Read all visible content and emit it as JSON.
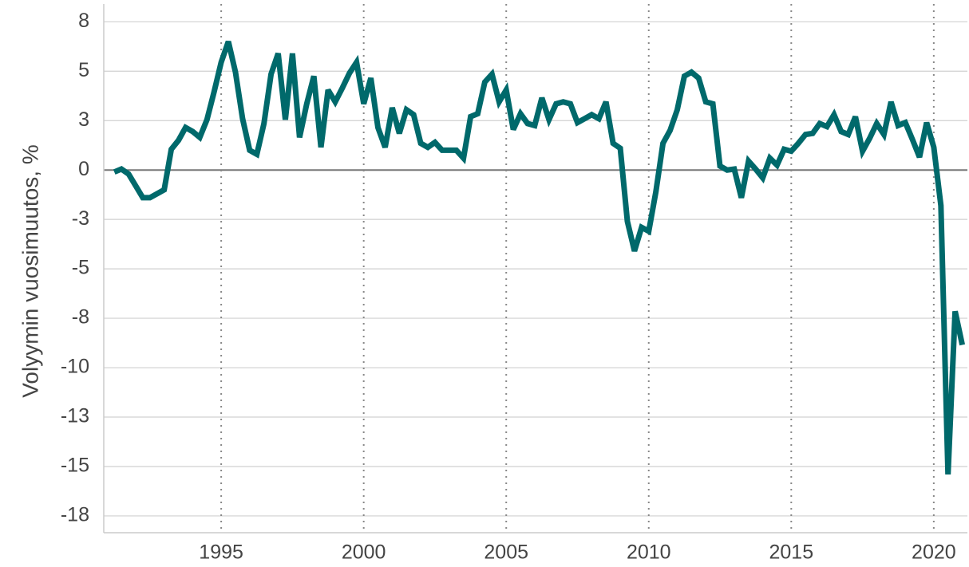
{
  "chart_data": {
    "type": "line",
    "y_label": "Volyymin vuosimuutos, %",
    "color": "#00696b",
    "grid": true,
    "x_grid": "dotted",
    "zero_line": true,
    "xlim": [
      1990.88,
      2021.18
    ],
    "xticks": [
      1995,
      2000,
      2005,
      2010,
      2015,
      2020
    ],
    "ylim": [
      -18.35,
      8.4
    ],
    "yticks": [
      {
        "value": 7.5,
        "label": "8"
      },
      5,
      {
        "value": 2.5,
        "label": "3"
      },
      0,
      {
        "value": -2.5,
        "label": "-3"
      },
      -5,
      {
        "value": -7.5,
        "label": "-8"
      },
      -10,
      {
        "value": -12.5,
        "label": "-13"
      },
      -15,
      {
        "value": -17.5,
        "label": "-18"
      }
    ],
    "x": [
      1991.25,
      1991.5,
      1991.75,
      1992.0,
      1992.25,
      1992.5,
      1992.75,
      1993.0,
      1993.25,
      1993.5,
      1993.75,
      1994.0,
      1994.25,
      1994.5,
      1994.75,
      1995.0,
      1995.25,
      1995.5,
      1995.75,
      1996.0,
      1996.25,
      1996.5,
      1996.75,
      1997.0,
      1997.25,
      1997.5,
      1997.75,
      1998.0,
      1998.25,
      1998.5,
      1998.75,
      1999.0,
      1999.25,
      1999.5,
      1999.75,
      2000.0,
      2000.25,
      2000.5,
      2000.75,
      2001.0,
      2001.25,
      2001.5,
      2001.75,
      2002.0,
      2002.25,
      2002.5,
      2002.75,
      2003.0,
      2003.25,
      2003.5,
      2003.75,
      2004.0,
      2004.25,
      2004.5,
      2004.75,
      2005.0,
      2005.25,
      2005.5,
      2005.75,
      2006.0,
      2006.25,
      2006.5,
      2006.75,
      2007.0,
      2007.25,
      2007.5,
      2007.75,
      2008.0,
      2008.25,
      2008.5,
      2008.75,
      2009.0,
      2009.25,
      2009.5,
      2009.75,
      2010.0,
      2010.25,
      2010.5,
      2010.75,
      2011.0,
      2011.25,
      2011.5,
      2011.75,
      2012.0,
      2012.25,
      2012.5,
      2012.75,
      2013.0,
      2013.25,
      2013.5,
      2013.75,
      2014.0,
      2014.25,
      2014.5,
      2014.75,
      2015.0,
      2015.25,
      2015.5,
      2015.75,
      2016.0,
      2016.25,
      2016.5,
      2016.75,
      2017.0,
      2017.25,
      2017.5,
      2017.75,
      2018.0,
      2018.25,
      2018.5,
      2018.75,
      2019.0,
      2019.25,
      2019.5,
      2019.75,
      2020.0,
      2020.25,
      2020.5,
      2020.75,
      2021.0
    ],
    "values": [
      -0.1,
      0.05,
      -0.2,
      -0.8,
      -1.4,
      -1.4,
      -1.2,
      -1.0,
      1.05,
      1.5,
      2.15,
      1.95,
      1.65,
      2.55,
      3.95,
      5.45,
      6.5,
      4.95,
      2.6,
      1.0,
      0.8,
      2.35,
      4.85,
      5.9,
      2.55,
      5.9,
      1.65,
      3.35,
      4.75,
      1.15,
      4.05,
      3.45,
      4.15,
      4.9,
      5.45,
      3.35,
      4.65,
      2.15,
      1.15,
      3.15,
      1.85,
      3.05,
      2.8,
      1.35,
      1.15,
      1.4,
      1.0,
      1.0,
      1.0,
      0.6,
      2.7,
      2.85,
      4.45,
      4.85,
      3.45,
      4.05,
      2.05,
      2.85,
      2.35,
      2.25,
      3.65,
      2.55,
      3.35,
      3.45,
      3.35,
      2.4,
      2.6,
      2.8,
      2.6,
      3.45,
      1.35,
      1.1,
      -2.6,
      -4.1,
      -2.9,
      -3.1,
      -1.1,
      1.35,
      2.0,
      3.05,
      4.75,
      4.95,
      4.65,
      3.45,
      3.35,
      0.2,
      0.0,
      0.05,
      -1.4,
      0.45,
      0.05,
      -0.4,
      0.6,
      0.25,
      1.05,
      0.95,
      1.35,
      1.8,
      1.85,
      2.35,
      2.2,
      2.8,
      1.95,
      1.8,
      2.7,
      0.95,
      1.6,
      2.35,
      1.8,
      3.45,
      2.25,
      2.4,
      1.55,
      0.65,
      2.4,
      1.15,
      -1.8,
      -15.4,
      -7.15,
      -8.85
    ]
  }
}
